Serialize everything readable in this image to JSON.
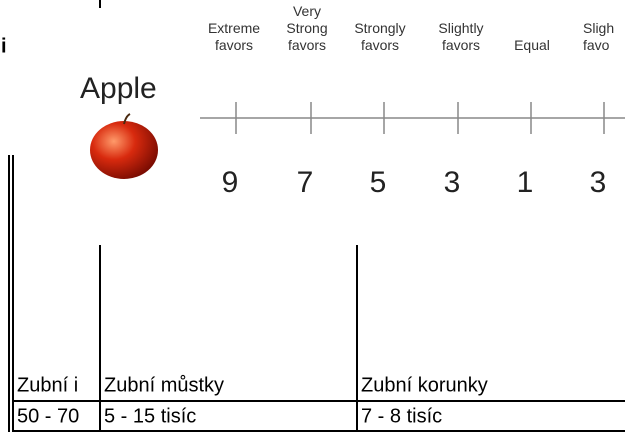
{
  "background_text": "i",
  "image": {
    "title": "Apple",
    "scale_labels": [
      [
        "Extreme",
        "favors"
      ],
      [
        "Very",
        "Strong",
        "favors"
      ],
      [
        "Strongly",
        "favors"
      ],
      [
        "Slightly",
        "favors"
      ],
      [
        "Equal"
      ],
      [
        "Sligh",
        "favo"
      ]
    ],
    "scale_numbers": [
      9,
      7,
      5,
      3,
      1,
      3
    ]
  },
  "table": {
    "rows": [
      [
        "Zubní i",
        "Zubní můstky",
        "Zubní korunky"
      ],
      [
        "50 - 70",
        "5 - 15 tisíc",
        "7 - 8 tisíc"
      ]
    ]
  }
}
